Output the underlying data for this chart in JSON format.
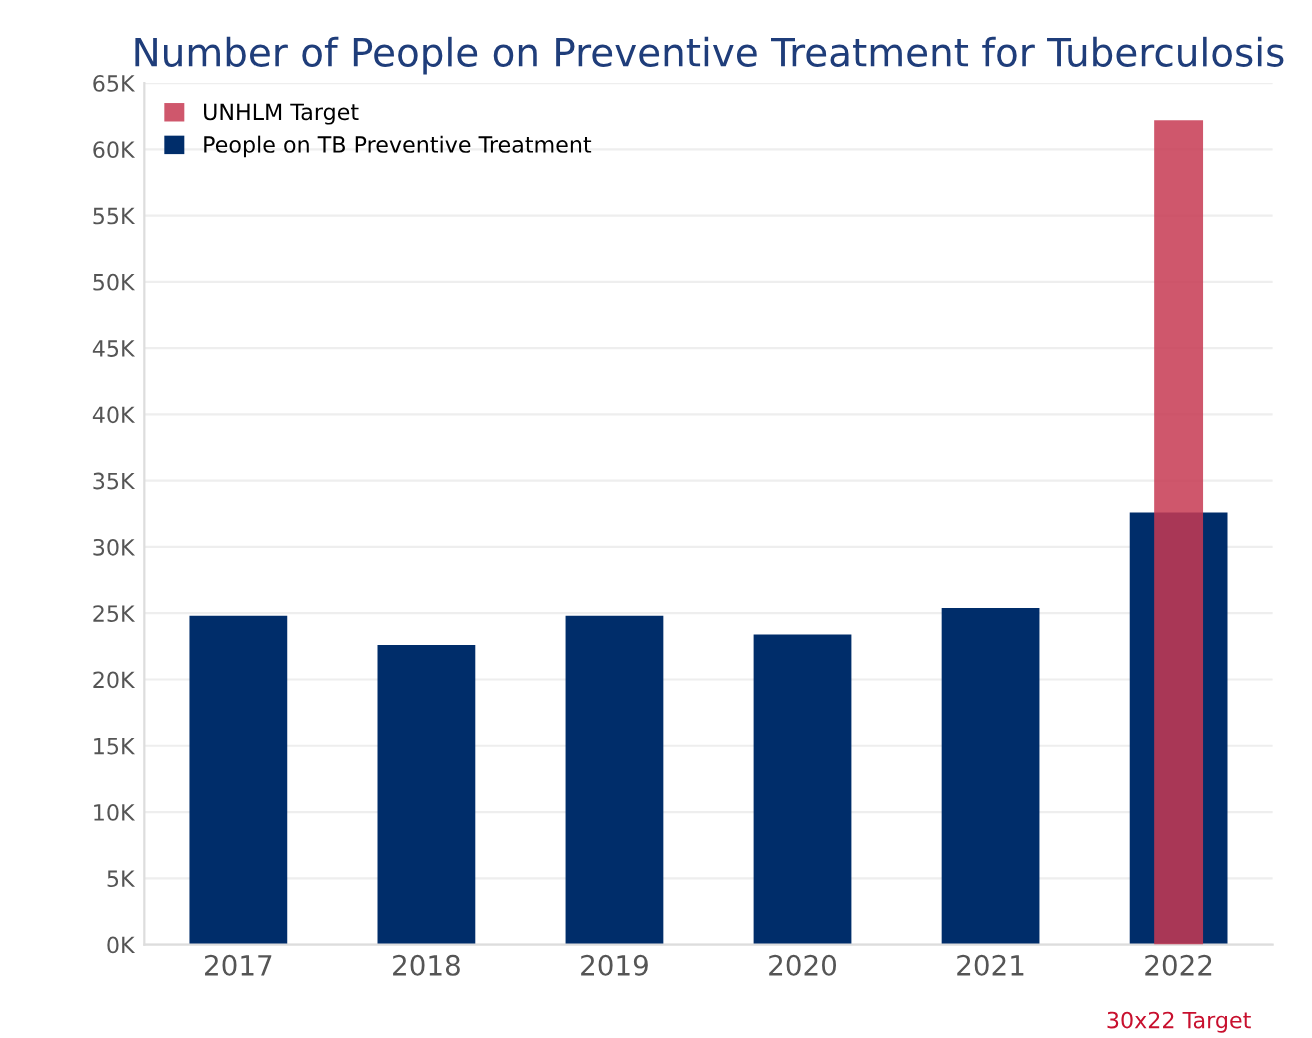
{
  "chart_data": {
    "type": "bar",
    "title": "Number of People on Preventive Treatment for Tuberculosis",
    "categories": [
      "2017",
      "2018",
      "2019",
      "2020",
      "2021",
      "2022"
    ],
    "series": [
      {
        "name": "UNHLM Target",
        "color": "#c73a52",
        "values": [
          null,
          null,
          null,
          null,
          null,
          62200
        ]
      },
      {
        "name": "People on TB Preventive Treatment",
        "color": "#002d6a",
        "values": [
          24800,
          22600,
          24800,
          23400,
          25400,
          32600
        ]
      }
    ],
    "ylim": [
      0,
      65000
    ],
    "yticks": [
      {
        "value": 0,
        "label": "0K"
      },
      {
        "value": 5000,
        "label": "5K"
      },
      {
        "value": 10000,
        "label": "10K"
      },
      {
        "value": 15000,
        "label": "15K"
      },
      {
        "value": 20000,
        "label": "20K"
      },
      {
        "value": 25000,
        "label": "25K"
      },
      {
        "value": 30000,
        "label": "30K"
      },
      {
        "value": 35000,
        "label": "35K"
      },
      {
        "value": 40000,
        "label": "40K"
      },
      {
        "value": 45000,
        "label": "45K"
      },
      {
        "value": 50000,
        "label": "50K"
      },
      {
        "value": 55000,
        "label": "55K"
      },
      {
        "value": 60000,
        "label": "60K"
      },
      {
        "value": 65000,
        "label": "65K"
      }
    ],
    "grid": "y",
    "legend": "top left",
    "annotations": [
      "30x22 Target"
    ]
  }
}
